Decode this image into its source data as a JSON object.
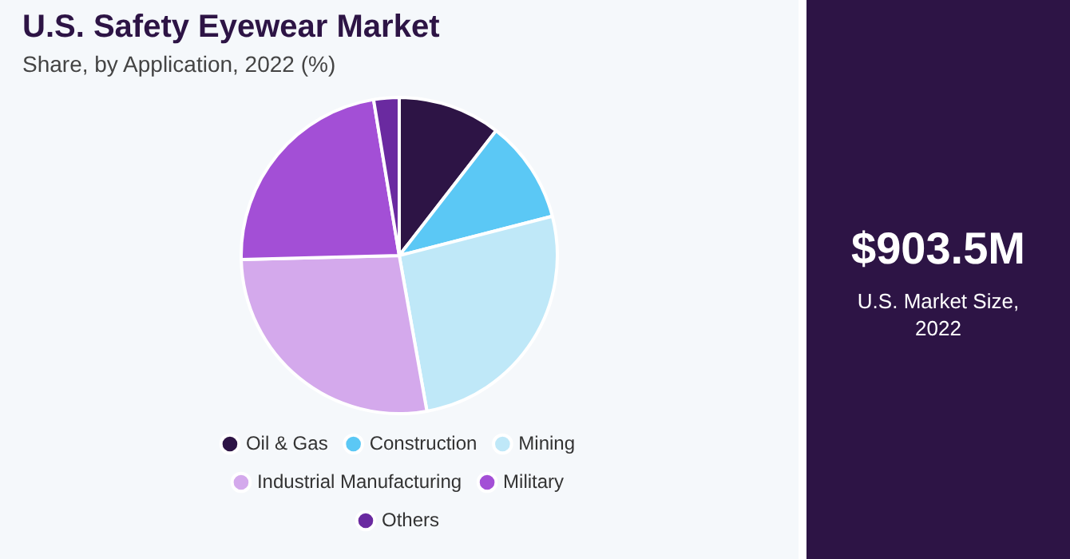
{
  "chart_data": {
    "type": "pie",
    "title": "U.S. Safety Eyewear Market",
    "subtitle": "Share, by Application, 2022 (%)",
    "categories": [
      "Oil & Gas",
      "Construction",
      "Mining",
      "Industrial Manufacturing",
      "Military",
      "Others"
    ],
    "values": [
      10.5,
      10.5,
      26.2,
      27.4,
      22.8,
      2.6
    ],
    "colors": [
      "#2d1445",
      "#5bc8f5",
      "#bfe8f8",
      "#d4a9ec",
      "#a34fd6",
      "#6a2aa0"
    ],
    "legend": "bottom",
    "annotations": [
      "$903.5M",
      "U.S. Market Size, 2022"
    ]
  }
}
